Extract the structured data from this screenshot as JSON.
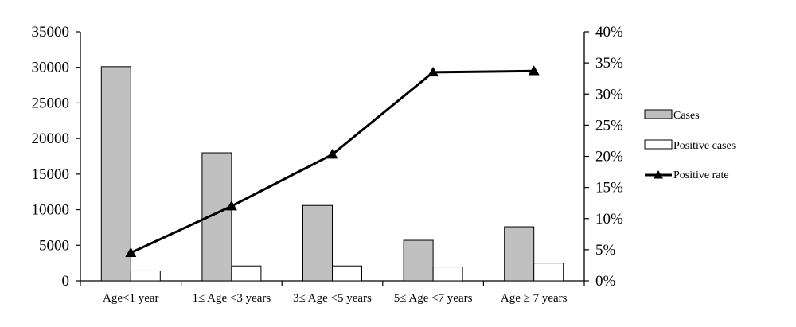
{
  "chart_data": {
    "type": "bar",
    "categories": [
      "Age<1 year",
      "1≤ Age <3 years",
      "3≤ Age <5 years",
      "5≤ Age <7 years",
      "Age ≥ 7 years"
    ],
    "series": [
      {
        "name": "Cases",
        "kind": "bar",
        "axis": "left",
        "color": "#c0c0c0",
        "values": [
          30100,
          18000,
          10600,
          5700,
          7600
        ]
      },
      {
        "name": "Positive cases",
        "kind": "bar",
        "axis": "left",
        "color": "#ffffff",
        "values": [
          1400,
          2100,
          2100,
          1950,
          2500
        ]
      },
      {
        "name": "Positive rate",
        "kind": "line",
        "axis": "right",
        "color": "#000000",
        "marker": "triangle",
        "values": [
          0.045,
          0.12,
          0.203,
          0.335,
          0.337
        ]
      }
    ],
    "y_left": {
      "min": 0,
      "max": 35000,
      "step": 5000,
      "ticks": [
        "0",
        "5000",
        "10000",
        "15000",
        "20000",
        "25000",
        "30000",
        "35000"
      ]
    },
    "y_right": {
      "min": 0,
      "max": 0.4,
      "step": 0.05,
      "ticks": [
        "0%",
        "5%",
        "10%",
        "15%",
        "20%",
        "25%",
        "30%",
        "35%",
        "40%"
      ]
    },
    "title": "",
    "xlabel": "",
    "ylabel": "",
    "grid": false,
    "legend_position": "right"
  }
}
